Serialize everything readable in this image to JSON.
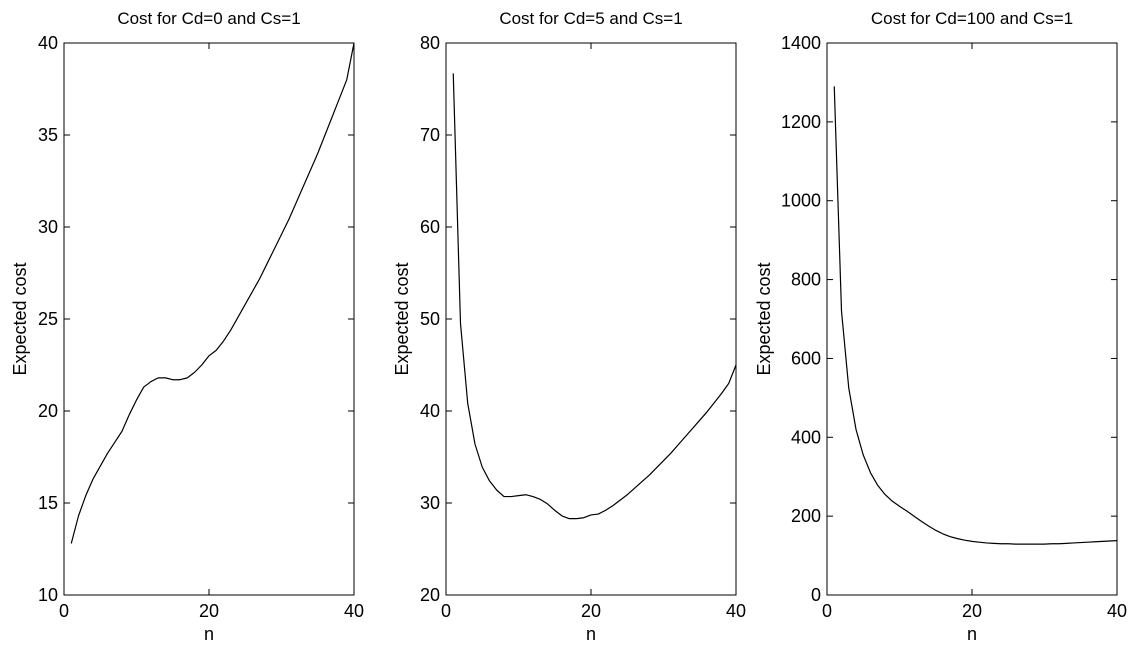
{
  "chart_data": [
    {
      "type": "line",
      "title": "Cost for Cd=0 and Cs=1",
      "xlabel": "n",
      "ylabel": "Expected cost",
      "xlim": [
        0,
        40
      ],
      "ylim": [
        10,
        40
      ],
      "xticks": [
        0,
        20,
        40
      ],
      "yticks": [
        10,
        15,
        20,
        25,
        30,
        35,
        40
      ],
      "grid": false,
      "series": [
        {
          "x": [
            1,
            2,
            3,
            4,
            5,
            6,
            7,
            8,
            9,
            10,
            11,
            12,
            13,
            14,
            15,
            16,
            17,
            18,
            19,
            20,
            21,
            22,
            23,
            24,
            25,
            26,
            27,
            28,
            29,
            30,
            31,
            32,
            33,
            34,
            35,
            36,
            37,
            38,
            39,
            40
          ],
          "y": [
            12.8,
            14.3,
            15.4,
            16.3,
            17.0,
            17.7,
            18.3,
            18.9,
            19.8,
            20.6,
            21.3,
            21.6,
            21.8,
            21.8,
            21.7,
            21.7,
            21.8,
            22.1,
            22.5,
            23.0,
            23.3,
            23.8,
            24.4,
            25.1,
            25.8,
            26.5,
            27.2,
            28.0,
            28.8,
            29.6,
            30.4,
            31.3,
            32.2,
            33.1,
            34.0,
            35.0,
            36.0,
            37.0,
            38.0,
            40.0
          ]
        }
      ]
    },
    {
      "type": "line",
      "title": "Cost for Cd=5 and Cs=1",
      "xlabel": "n",
      "ylabel": "Expected cost",
      "xlim": [
        0,
        40
      ],
      "ylim": [
        20,
        80
      ],
      "xticks": [
        0,
        20,
        40
      ],
      "yticks": [
        20,
        30,
        40,
        50,
        60,
        70,
        80
      ],
      "grid": false,
      "series": [
        {
          "x": [
            1,
            2,
            3,
            4,
            5,
            6,
            7,
            8,
            9,
            10,
            11,
            12,
            13,
            14,
            15,
            16,
            17,
            18,
            19,
            20,
            21,
            22,
            23,
            24,
            25,
            26,
            27,
            28,
            29,
            30,
            31,
            32,
            33,
            34,
            35,
            36,
            37,
            38,
            39,
            40
          ],
          "y": [
            76.7,
            49.5,
            40.8,
            36.4,
            33.9,
            32.4,
            31.4,
            30.7,
            30.7,
            30.8,
            30.9,
            30.7,
            30.4,
            29.9,
            29.2,
            28.6,
            28.3,
            28.3,
            28.4,
            28.7,
            28.8,
            29.2,
            29.7,
            30.3,
            30.9,
            31.6,
            32.3,
            33.0,
            33.8,
            34.6,
            35.4,
            36.3,
            37.2,
            38.1,
            39.0,
            39.9,
            40.9,
            41.9,
            43.0,
            45.0
          ]
        }
      ]
    },
    {
      "type": "line",
      "title": "Cost for Cd=100 and Cs=1",
      "xlabel": "n",
      "ylabel": "Expected cost",
      "xlim": [
        0,
        40
      ],
      "ylim": [
        0,
        1400
      ],
      "xticks": [
        0,
        20,
        40
      ],
      "yticks": [
        0,
        200,
        400,
        600,
        800,
        1000,
        1200,
        1400
      ],
      "grid": false,
      "series": [
        {
          "x": [
            1,
            2,
            3,
            4,
            5,
            6,
            7,
            8,
            9,
            10,
            11,
            12,
            13,
            14,
            15,
            16,
            17,
            18,
            19,
            20,
            21,
            22,
            23,
            24,
            25,
            26,
            27,
            28,
            29,
            30,
            31,
            32,
            33,
            34,
            35,
            36,
            37,
            38,
            39,
            40
          ],
          "y": [
            1290,
            720,
            525,
            420,
            355,
            310,
            278,
            255,
            238,
            225,
            213,
            200,
            187,
            175,
            164,
            155,
            148,
            143,
            139,
            136,
            134,
            132,
            131,
            130,
            130,
            129,
            129,
            129,
            129,
            129,
            130,
            130,
            131,
            132,
            133,
            134,
            135,
            136,
            137,
            138
          ]
        }
      ]
    }
  ]
}
